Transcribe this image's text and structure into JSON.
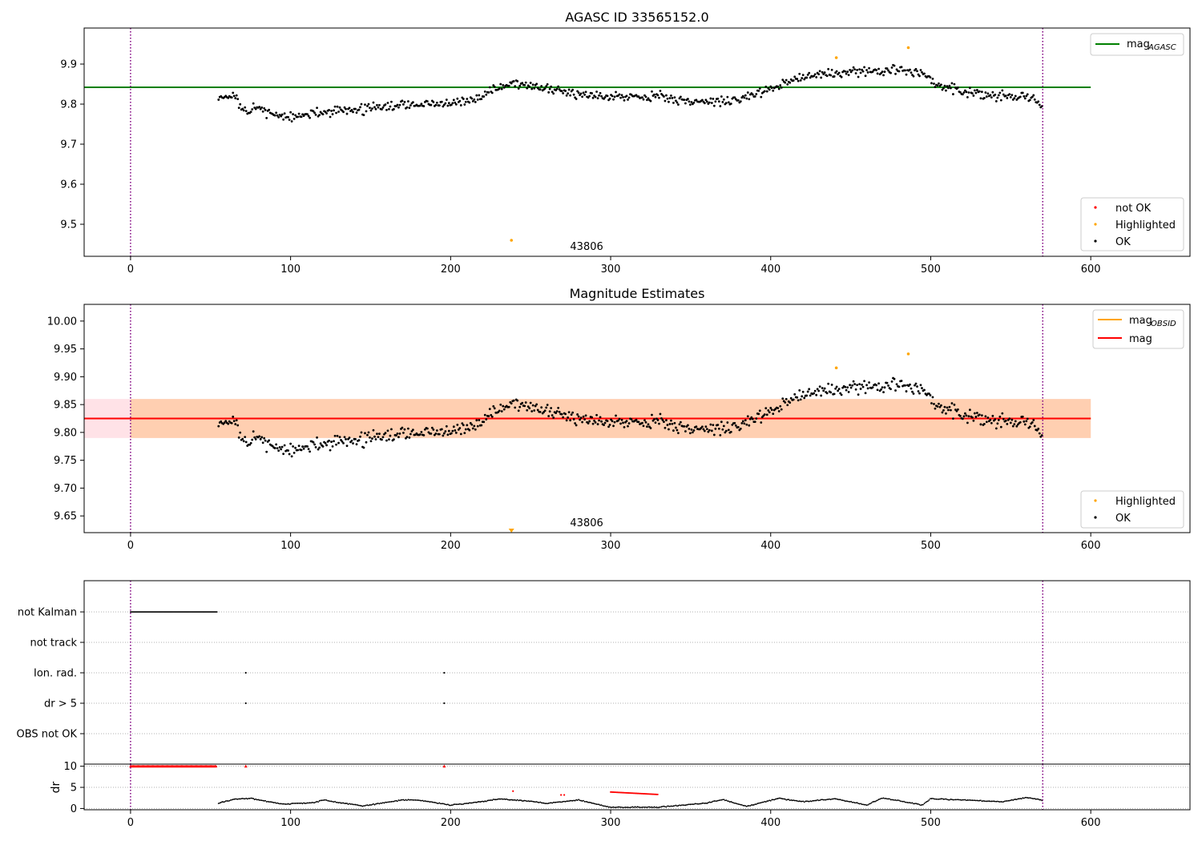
{
  "chart_data": [
    {
      "type": "scatter",
      "title": "AGASC ID 33565152.0",
      "xlim": [
        -29,
        662
      ],
      "ylim": [
        9.42,
        9.99
      ],
      "x_ticks": [
        "0",
        "100",
        "200",
        "300",
        "400",
        "500",
        "600"
      ],
      "y_ticks": [
        "9.5",
        "9.6",
        "9.7",
        "9.8",
        "9.9"
      ],
      "obsid_label": "43806",
      "obs_bounds": [
        0,
        570
      ],
      "reference_line": {
        "name": "mag_AGASC",
        "value": 9.842,
        "x_range": [
          -29,
          600
        ],
        "color": "#008000"
      },
      "legend_line": {
        "base": "mag",
        "sub": "AGASC"
      },
      "legend_points": [
        {
          "name": "not OK",
          "color": "#ff0000"
        },
        {
          "name": "Highlighted",
          "color": "#ffa500"
        },
        {
          "name": "OK",
          "color": "#000000"
        }
      ],
      "series": [
        {
          "name": "OK",
          "color": "#000000",
          "trend": [
            [
              55,
              9.82
            ],
            [
              65,
              9.82
            ],
            [
              70,
              9.78
            ],
            [
              80,
              9.79
            ],
            [
              90,
              9.775
            ],
            [
              100,
              9.765
            ],
            [
              120,
              9.78
            ],
            [
              150,
              9.79
            ],
            [
              180,
              9.8
            ],
            [
              200,
              9.8
            ],
            [
              215,
              9.81
            ],
            [
              225,
              9.835
            ],
            [
              240,
              9.855
            ],
            [
              260,
              9.835
            ],
            [
              300,
              9.82
            ],
            [
              330,
              9.82
            ],
            [
              350,
              9.805
            ],
            [
              380,
              9.81
            ],
            [
              400,
              9.84
            ],
            [
              420,
              9.87
            ],
            [
              450,
              9.88
            ],
            [
              480,
              9.885
            ],
            [
              495,
              9.875
            ],
            [
              505,
              9.85
            ],
            [
              520,
              9.83
            ],
            [
              540,
              9.82
            ],
            [
              560,
              9.82
            ],
            [
              568,
              9.8
            ]
          ]
        },
        {
          "name": "Highlighted",
          "color": "#ffa500",
          "points": [
            [
              238,
              9.46
            ],
            [
              441,
              9.916
            ],
            [
              486,
              9.941
            ]
          ]
        }
      ]
    },
    {
      "type": "scatter",
      "title": "Magnitude Estimates",
      "xlim": [
        -29,
        662
      ],
      "ylim": [
        9.62,
        10.03
      ],
      "x_ticks": [
        "0",
        "100",
        "200",
        "300",
        "400",
        "500",
        "600"
      ],
      "y_ticks": [
        "9.65",
        "9.70",
        "9.75",
        "9.80",
        "9.85",
        "9.90",
        "9.95",
        "10.00"
      ],
      "obsid_label": "43806",
      "obs_bounds": [
        0,
        570
      ],
      "lines": [
        {
          "name": "mag_OBSID",
          "value": 9.825,
          "band": [
            9.79,
            9.86
          ],
          "x_range": [
            -29,
            600
          ],
          "color": "#ffa500",
          "band_color": "#ffcba4"
        },
        {
          "name": "mag",
          "value": 9.825,
          "band": [
            9.79,
            9.86
          ],
          "x_range": [
            -29,
            600
          ],
          "color": "#ff0000",
          "band_color": "#ffdde3"
        }
      ],
      "legend_lines": [
        {
          "base": "mag",
          "sub": "OBSID",
          "color": "#ffa500"
        },
        {
          "base": "mag",
          "sub": "",
          "color": "#ff0000"
        }
      ],
      "legend_points": [
        {
          "name": "Highlighted",
          "color": "#ffa500"
        },
        {
          "name": "OK",
          "color": "#000000"
        }
      ],
      "series": [
        {
          "name": "Highlighted",
          "color": "#ffa500",
          "points": [
            [
              441,
              9.916
            ],
            [
              486,
              9.941
            ]
          ],
          "offscale_marker": [
            238,
            9.62
          ]
        }
      ]
    },
    {
      "type": "scatter",
      "title": "",
      "xlim": [
        -29,
        662
      ],
      "categories": [
        "not Kalman",
        "not track",
        "Ion. rad.",
        "dr > 5",
        "OBS not OK"
      ],
      "flags": [
        {
          "category": "not Kalman",
          "ranges": [
            [
              0,
              54
            ]
          ],
          "points": []
        },
        {
          "category": "not track",
          "ranges": [],
          "points": []
        },
        {
          "category": "Ion. rad.",
          "ranges": [],
          "points": [
            72,
            196
          ]
        },
        {
          "category": "dr > 5",
          "ranges": [],
          "points": [
            72,
            196
          ]
        },
        {
          "category": "OBS not OK",
          "ranges": [],
          "points": []
        }
      ],
      "obs_bounds": [
        0,
        570
      ]
    },
    {
      "type": "scatter",
      "title": "",
      "ylabel": "dr",
      "xlim": [
        -29,
        662
      ],
      "ylim": [
        -0.3,
        10.5
      ],
      "x_ticks": [
        "0",
        "100",
        "200",
        "300",
        "400",
        "500",
        "600"
      ],
      "y_ticks": [
        "0",
        "5",
        "10"
      ],
      "obs_bounds": [
        0,
        570
      ],
      "red_points": {
        "clipped_range": [
          0,
          54
        ],
        "clipped_value": 10,
        "singles": [
          [
            72,
            10
          ],
          [
            196,
            10
          ],
          [
            239,
            4.1
          ],
          [
            269,
            3.2
          ],
          [
            271,
            3.2
          ]
        ],
        "run": [
          300,
          330,
          3.9,
          3.3
        ]
      },
      "black_trend": [
        [
          55,
          1.3
        ],
        [
          65,
          2.2
        ],
        [
          75,
          2.4
        ],
        [
          95,
          1.0
        ],
        [
          115,
          1.4
        ],
        [
          120,
          2.0
        ],
        [
          145,
          0.6
        ],
        [
          170,
          2.0
        ],
        [
          180,
          2.0
        ],
        [
          200,
          0.8
        ],
        [
          220,
          1.6
        ],
        [
          230,
          2.3
        ],
        [
          250,
          1.7
        ],
        [
          260,
          1.2
        ],
        [
          280,
          2.0
        ],
        [
          300,
          0.3
        ],
        [
          330,
          0.3
        ],
        [
          360,
          1.3
        ],
        [
          370,
          2.1
        ],
        [
          385,
          0.5
        ],
        [
          405,
          2.4
        ],
        [
          420,
          1.6
        ],
        [
          440,
          2.3
        ],
        [
          460,
          0.8
        ],
        [
          470,
          2.5
        ],
        [
          495,
          0.8
        ],
        [
          500,
          2.3
        ],
        [
          520,
          2.0
        ],
        [
          545,
          1.6
        ],
        [
          560,
          2.6
        ],
        [
          570,
          1.9
        ]
      ]
    }
  ]
}
